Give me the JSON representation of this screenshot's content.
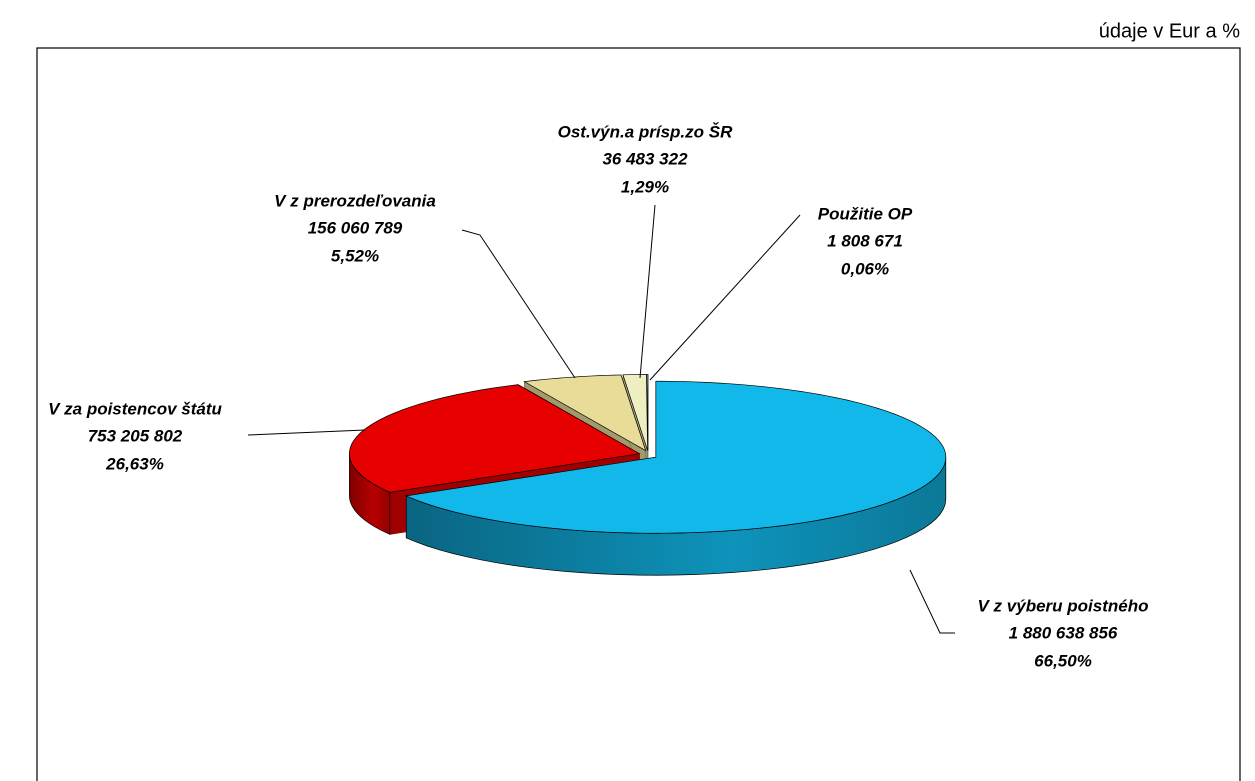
{
  "chart_data": {
    "type": "pie3d",
    "unit_note": "údaje v Eur a %",
    "categories": [
      "V z výberu poistného",
      "V za poistencov štátu",
      "V z prerozdeľovania",
      "Ost.výn.a prísp.zo ŠR",
      "Použitie OP"
    ],
    "values": [
      1880638856,
      753205802,
      156060789,
      36483322,
      1808671
    ],
    "value_labels": [
      "1 880 638 856",
      "753 205 802",
      "156 060 789",
      "36 483 322",
      "1 808 671"
    ],
    "percents": [
      66.5,
      26.63,
      5.52,
      1.29,
      0.06
    ],
    "percent_labels": [
      "66,50%",
      "26,63%",
      "5,52%",
      "1,29%",
      "0,06%"
    ],
    "colors": [
      "#12b8ea",
      "#e60000",
      "#e8dc98",
      "#eeeec0",
      "#ccffff"
    ]
  }
}
